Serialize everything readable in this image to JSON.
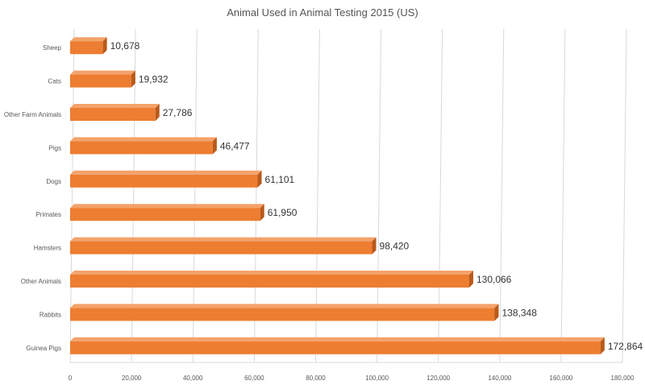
{
  "chart_data": {
    "type": "bar",
    "orientation": "horizontal",
    "title": "Animal Used in Animal Testing 2015 (US)",
    "categories": [
      "Sheep",
      "Cats",
      "Other Farm Animals",
      "Pigs",
      "Dogs",
      "Primates",
      "Hamsters",
      "Other Animals",
      "Rabbits",
      "Guinea Pigs"
    ],
    "values": [
      10678,
      19932,
      27786,
      46477,
      61101,
      61950,
      98420,
      130066,
      138348,
      172864
    ],
    "data_labels": [
      "10,678",
      "19,932",
      "27,786",
      "46,477",
      "61,101",
      "61,950",
      "98,420",
      "130,066",
      "138,348",
      "172,864"
    ],
    "xlim": [
      0,
      180000
    ],
    "x_ticks": [
      0,
      20000,
      40000,
      60000,
      80000,
      100000,
      120000,
      140000,
      160000,
      180000
    ],
    "x_tick_labels": [
      "0",
      "20,000",
      "40,000",
      "60,000",
      "80,000",
      "100,000",
      "120,000",
      "140,000",
      "160,000",
      "180,000"
    ],
    "grid": "vertical",
    "legend": "none",
    "colors": {
      "bar_front": "#ED7D31",
      "bar_top": "#F4A26A",
      "bar_side": "#B85A1B",
      "grid": "#d9d9d9"
    }
  }
}
